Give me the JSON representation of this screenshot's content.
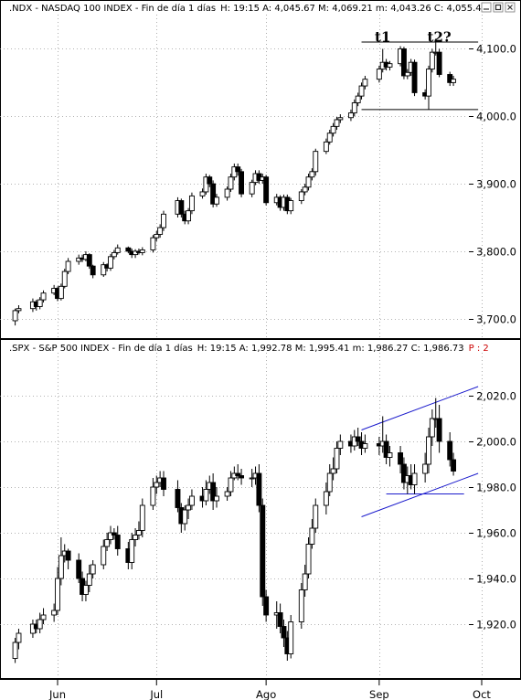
{
  "chart_data": [
    {
      "type": "candlestick",
      "title": ".NDX - NASDAQ 100 INDEX - Fin de día 1 días",
      "info": "H: 19:15  A: 4,045.67  M: 4,069.21  m: 4,043.26  C: 4,055.41",
      "yticks": [
        "4,100.0",
        "4,000.0",
        "3,900.0",
        "3,800.0",
        "3,700.0"
      ],
      "ytick_values": [
        4100,
        4000,
        3900,
        3800,
        3700
      ],
      "ylim": [
        3678,
        4148
      ],
      "annotations": [
        "t1",
        "t2?"
      ],
      "annotation_dates": [
        "2014-09-03",
        "2014-09-19"
      ],
      "levels": [
        {
          "x": [
            "2014-08-28",
            "2014-09-30"
          ],
          "y": [
            4110,
            4110
          ]
        },
        {
          "x": [
            "2014-08-28",
            "2014-09-30"
          ],
          "y": [
            4010,
            4010
          ]
        }
      ],
      "x": [
        "2014-05-22",
        "2014-05-23",
        "2014-05-27",
        "2014-05-28",
        "2014-05-29",
        "2014-05-30",
        "2014-06-02",
        "2014-06-03",
        "2014-06-04",
        "2014-06-05",
        "2014-06-06",
        "2014-06-09",
        "2014-06-10",
        "2014-06-11",
        "2014-06-12",
        "2014-06-13",
        "2014-06-16",
        "2014-06-17",
        "2014-06-18",
        "2014-06-19",
        "2014-06-20",
        "2014-06-23",
        "2014-06-24",
        "2014-06-25",
        "2014-06-26",
        "2014-06-27",
        "2014-06-30",
        "2014-07-01",
        "2014-07-02",
        "2014-07-03",
        "2014-07-07",
        "2014-07-08",
        "2014-07-09",
        "2014-07-10",
        "2014-07-11",
        "2014-07-14",
        "2014-07-15",
        "2014-07-16",
        "2014-07-17",
        "2014-07-18",
        "2014-07-21",
        "2014-07-22",
        "2014-07-23",
        "2014-07-24",
        "2014-07-25",
        "2014-07-28",
        "2014-07-29",
        "2014-07-30",
        "2014-07-31",
        "2014-08-01",
        "2014-08-04",
        "2014-08-05",
        "2014-08-06",
        "2014-08-07",
        "2014-08-08",
        "2014-08-11",
        "2014-08-12",
        "2014-08-13",
        "2014-08-14",
        "2014-08-15",
        "2014-08-18",
        "2014-08-19",
        "2014-08-20",
        "2014-08-21",
        "2014-08-22",
        "2014-08-25",
        "2014-08-26",
        "2014-08-27",
        "2014-08-28",
        "2014-08-29",
        "2014-09-02",
        "2014-09-03",
        "2014-09-04",
        "2014-09-05",
        "2014-09-08",
        "2014-09-09",
        "2014-09-10",
        "2014-09-11",
        "2014-09-12",
        "2014-09-15",
        "2014-09-16",
        "2014-09-17",
        "2014-09-18",
        "2014-09-19",
        "2014-09-22",
        "2014-09-23"
      ],
      "series": [
        {
          "name": "NDX",
          "open": [
            3697,
            3712,
            3715,
            3725,
            3718,
            3728,
            3738,
            3745,
            3730,
            3748,
            3770,
            3785,
            3790,
            3788,
            3795,
            3778,
            3765,
            3780,
            3775,
            3792,
            3798,
            3805,
            3800,
            3795,
            3800,
            3798,
            3802,
            3820,
            3825,
            3835,
            3855,
            3875,
            3855,
            3845,
            3860,
            3882,
            3888,
            3910,
            3900,
            3870,
            3880,
            3892,
            3910,
            3925,
            3918,
            3885,
            3902,
            3915,
            3905,
            3910,
            3872,
            3880,
            3865,
            3880,
            3860,
            3875,
            3888,
            3895,
            3910,
            3918,
            3948,
            3962,
            3975,
            3985,
            3995,
            3998,
            4005,
            4020,
            4030,
            4045,
            4055,
            4070,
            4080,
            4073,
            4078,
            4100,
            4060,
            4065,
            4080,
            4035,
            4030,
            4070,
            4095,
            4095,
            4062,
            4050
          ],
          "close": [
            3712,
            3715,
            3725,
            3718,
            3728,
            3738,
            3745,
            3730,
            3748,
            3770,
            3785,
            3790,
            3788,
            3795,
            3778,
            3765,
            3780,
            3775,
            3792,
            3798,
            3805,
            3800,
            3795,
            3800,
            3798,
            3802,
            3820,
            3825,
            3835,
            3855,
            3875,
            3855,
            3845,
            3860,
            3882,
            3888,
            3910,
            3900,
            3870,
            3880,
            3892,
            3910,
            3925,
            3918,
            3885,
            3902,
            3915,
            3905,
            3910,
            3872,
            3880,
            3865,
            3880,
            3860,
            3875,
            3888,
            3895,
            3910,
            3918,
            3948,
            3962,
            3975,
            3985,
            3995,
            3998,
            4005,
            4020,
            4030,
            4045,
            4055,
            4070,
            4080,
            4073,
            4078,
            4100,
            4060,
            4065,
            4080,
            4035,
            4030,
            4070,
            4095,
            4095,
            4062,
            4050,
            4055
          ],
          "high": [
            3715,
            3720,
            3730,
            3728,
            3732,
            3742,
            3750,
            3748,
            3752,
            3774,
            3790,
            3795,
            3795,
            3800,
            3797,
            3780,
            3784,
            3782,
            3796,
            3802,
            3810,
            3807,
            3804,
            3803,
            3804,
            3806,
            3824,
            3830,
            3840,
            3860,
            3880,
            3878,
            3860,
            3864,
            3887,
            3893,
            3915,
            3913,
            3905,
            3885,
            3896,
            3915,
            3930,
            3930,
            3922,
            3906,
            3920,
            3920,
            3915,
            3913,
            3885,
            3883,
            3884,
            3884,
            3879,
            3892,
            3900,
            3915,
            3923,
            3952,
            3967,
            3980,
            3990,
            3999,
            4003,
            4010,
            4025,
            4035,
            4050,
            4060,
            4075,
            4100,
            4085,
            4082,
            4104,
            4103,
            4070,
            4085,
            4084,
            4040,
            4075,
            4100,
            4115,
            4100,
            4066,
            4060
          ],
          "low": [
            3690,
            3708,
            3710,
            3712,
            3714,
            3724,
            3735,
            3726,
            3727,
            3745,
            3766,
            3780,
            3784,
            3785,
            3774,
            3760,
            3762,
            3770,
            3771,
            3788,
            3795,
            3797,
            3790,
            3790,
            3795,
            3794,
            3798,
            3815,
            3820,
            3830,
            3850,
            3850,
            3840,
            3840,
            3855,
            3878,
            3884,
            3895,
            3865,
            3866,
            3875,
            3888,
            3905,
            3912,
            3880,
            3880,
            3898,
            3900,
            3900,
            3868,
            3868,
            3860,
            3860,
            3855,
            3855,
            3870,
            3883,
            3890,
            3905,
            3912,
            3944,
            3958,
            3970,
            3980,
            3990,
            3993,
            4000,
            4015,
            4025,
            4040,
            4050,
            4065,
            4068,
            4068,
            4074,
            4055,
            4055,
            4060,
            4030,
            4025,
            4010,
            4065,
            4090,
            4058,
            4045,
            4045
          ]
        }
      ],
      "xtick_labels": [
        "Jun",
        "Jul",
        "Ago",
        "Sep",
        "Oct"
      ],
      "xtick_dates": [
        "2014-06-03",
        "2014-07-01",
        "2014-08-01",
        "2014-09-02",
        "2014-10-01"
      ]
    },
    {
      "type": "candlestick",
      "title": ".SPX - S&P 500 INDEX - Fin de día 1 días",
      "info": "H: 19:15  A: 1,992.78  M: 1,995.41  m: 1,986.27  C: 1,986.73",
      "percent_label": "P : 2",
      "yticks": [
        "2,020.0",
        "2,000.0",
        "1,980.0",
        "1,960.0",
        "1,940.0",
        "1,920.0"
      ],
      "ytick_values": [
        2020,
        2000,
        1980,
        1960,
        1940,
        1920
      ],
      "ylim": [
        1898,
        2038
      ],
      "levels": [
        {
          "x": [
            "2014-08-28",
            "2014-09-30"
          ],
          "y": [
            2005,
            2024
          ]
        },
        {
          "x": [
            "2014-08-28",
            "2014-09-30"
          ],
          "y": [
            1967,
            1986
          ]
        },
        {
          "x": [
            "2014-09-04",
            "2014-09-26"
          ],
          "y": [
            1977,
            1977
          ]
        }
      ],
      "x": [
        "2014-05-22",
        "2014-05-23",
        "2014-05-27",
        "2014-05-28",
        "2014-05-29",
        "2014-05-30",
        "2014-06-02",
        "2014-06-03",
        "2014-06-04",
        "2014-06-05",
        "2014-06-06",
        "2014-06-09",
        "2014-06-10",
        "2014-06-11",
        "2014-06-12",
        "2014-06-13",
        "2014-06-16",
        "2014-06-17",
        "2014-06-18",
        "2014-06-19",
        "2014-06-20",
        "2014-06-23",
        "2014-06-24",
        "2014-06-25",
        "2014-06-26",
        "2014-06-27",
        "2014-06-30",
        "2014-07-01",
        "2014-07-02",
        "2014-07-03",
        "2014-07-07",
        "2014-07-08",
        "2014-07-09",
        "2014-07-10",
        "2014-07-11",
        "2014-07-14",
        "2014-07-15",
        "2014-07-16",
        "2014-07-17",
        "2014-07-18",
        "2014-07-21",
        "2014-07-22",
        "2014-07-23",
        "2014-07-24",
        "2014-07-25",
        "2014-07-28",
        "2014-07-29",
        "2014-07-30",
        "2014-07-31",
        "2014-08-01",
        "2014-08-04",
        "2014-08-05",
        "2014-08-06",
        "2014-08-07",
        "2014-08-08",
        "2014-08-11",
        "2014-08-12",
        "2014-08-13",
        "2014-08-14",
        "2014-08-15",
        "2014-08-18",
        "2014-08-19",
        "2014-08-20",
        "2014-08-21",
        "2014-08-22",
        "2014-08-25",
        "2014-08-26",
        "2014-08-27",
        "2014-08-28",
        "2014-08-29",
        "2014-09-02",
        "2014-09-03",
        "2014-09-04",
        "2014-09-05",
        "2014-09-08",
        "2014-09-09",
        "2014-09-10",
        "2014-09-11",
        "2014-09-12",
        "2014-09-15",
        "2014-09-16",
        "2014-09-17",
        "2014-09-18",
        "2014-09-19",
        "2014-09-22",
        "2014-09-23"
      ],
      "series": [
        {
          "name": "SPX",
          "open": [
            1905,
            1912,
            1916,
            1920,
            1918,
            1922,
            1924,
            1926,
            1940,
            1950,
            1952,
            1948,
            1940,
            1933,
            1937,
            1942,
            1946,
            1954,
            1957,
            1960,
            1959,
            1953,
            1947,
            1957,
            1959,
            1961,
            1972,
            1980,
            1982,
            1984,
            1979,
            1971,
            1964,
            1970,
            1972,
            1976,
            1974,
            1979,
            1982,
            1974,
            1976,
            1978,
            1984,
            1986,
            1985,
            1984,
            1984,
            1986,
            1972,
            1932,
            1924,
            1925,
            1919,
            1914,
            1907,
            1921,
            1935,
            1942,
            1955,
            1962,
            1972,
            1978,
            1986,
            1988,
            1997,
            2000,
            1998,
            2002,
            2000,
            1997,
            1999,
            1998,
            2000,
            1993,
            1995,
            1990,
            1982,
            1985,
            1981,
            1986,
            1990,
            2002,
            2010,
            2010,
            2000,
            1992
          ],
          "close": [
            1912,
            1916,
            1920,
            1918,
            1922,
            1924,
            1926,
            1940,
            1950,
            1952,
            1948,
            1940,
            1933,
            1937,
            1942,
            1946,
            1954,
            1957,
            1960,
            1959,
            1953,
            1947,
            1957,
            1959,
            1961,
            1972,
            1980,
            1982,
            1984,
            1979,
            1971,
            1964,
            1970,
            1972,
            1976,
            1974,
            1979,
            1982,
            1974,
            1976,
            1978,
            1984,
            1986,
            1985,
            1984,
            1984,
            1986,
            1972,
            1932,
            1924,
            1925,
            1919,
            1914,
            1907,
            1921,
            1935,
            1942,
            1955,
            1962,
            1972,
            1978,
            1986,
            1988,
            1997,
            2000,
            1998,
            2002,
            2000,
            1997,
            1999,
            1998,
            2000,
            1993,
            1995,
            1990,
            1982,
            1985,
            1981,
            1986,
            1990,
            2002,
            2010,
            2010,
            2000,
            1992,
            1987
          ],
          "high": [
            1914,
            1918,
            1922,
            1922,
            1925,
            1927,
            1929,
            1945,
            1958,
            1955,
            1953,
            1951,
            1943,
            1939,
            1946,
            1948,
            1957,
            1960,
            1963,
            1962,
            1963,
            1956,
            1960,
            1962,
            1965,
            1975,
            1984,
            1985,
            1987,
            1987,
            1983,
            1973,
            1972,
            1975,
            1979,
            1980,
            1983,
            1985,
            1986,
            1980,
            1980,
            1987,
            1989,
            1990,
            1988,
            1988,
            1989,
            1990,
            1975,
            1935,
            1930,
            1929,
            1922,
            1917,
            1924,
            1938,
            1946,
            1958,
            1966,
            1975,
            1982,
            1990,
            1993,
            2000,
            2003,
            2003,
            2005,
            2006,
            2004,
            2003,
            2002,
            2011,
            2003,
            1998,
            1998,
            1993,
            1989,
            1990,
            1990,
            1995,
            2006,
            2014,
            2019,
            2016,
            2004,
            1995
          ],
          "low": [
            1903,
            1909,
            1914,
            1916,
            1916,
            1920,
            1921,
            1924,
            1937,
            1947,
            1944,
            1938,
            1930,
            1930,
            1934,
            1940,
            1944,
            1952,
            1955,
            1957,
            1950,
            1944,
            1944,
            1954,
            1957,
            1958,
            1970,
            1977,
            1980,
            1976,
            1969,
            1960,
            1961,
            1966,
            1970,
            1971,
            1972,
            1977,
            1970,
            1971,
            1974,
            1976,
            1983,
            1983,
            1981,
            1980,
            1981,
            1969,
            1928,
            1921,
            1918,
            1916,
            1910,
            1904,
            1905,
            1918,
            1932,
            1940,
            1953,
            1960,
            1968,
            1976,
            1983,
            1986,
            1994,
            1995,
            1996,
            1998,
            1994,
            1995,
            1994,
            1995,
            1990,
            1989,
            1986,
            1979,
            1977,
            1979,
            1977,
            1982,
            1986,
            1998,
            2006,
            1995,
            1989,
            1985
          ]
        }
      ],
      "xtick_labels": [
        "Jun",
        "Jul",
        "Ago",
        "Sep",
        "Oct"
      ],
      "xtick_dates": [
        "2014-06-03",
        "2014-07-01",
        "2014-08-01",
        "2014-09-02",
        "2014-10-01"
      ]
    }
  ],
  "colors": {
    "candle_up": "#ffffff",
    "candle_down": "#000000",
    "trendline": "#1a1acc",
    "grid": "#9a9a9a"
  },
  "window_controls": [
    "minimize-icon",
    "restore-icon",
    "close-icon"
  ]
}
